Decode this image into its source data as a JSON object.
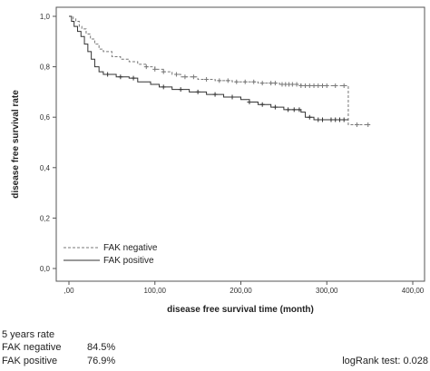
{
  "chart_data": {
    "type": "line",
    "title": "",
    "xlabel": "disease free survival time (month)",
    "ylabel": "disease free survival rate",
    "xlim": [
      0,
      400
    ],
    "ylim": [
      0,
      1.0
    ],
    "x_ticks": [
      0,
      100,
      200,
      300,
      400
    ],
    "x_tick_labels": [
      ",00",
      "100,00",
      "200,00",
      "300,00",
      "400,00"
    ],
    "y_ticks": [
      0,
      0.2,
      0.4,
      0.6,
      0.8,
      1.0
    ],
    "y_tick_labels": [
      "0,0",
      "0,2",
      "0,4",
      "0,6",
      "0,8",
      "1,0"
    ],
    "grid": false,
    "legend_position": "bottom-left",
    "series": [
      {
        "name": "FAK negative",
        "style": "dashed",
        "color": "#777777",
        "points": [
          [
            0,
            1.0
          ],
          [
            5,
            0.99
          ],
          [
            8,
            0.98
          ],
          [
            12,
            0.96
          ],
          [
            15,
            0.95
          ],
          [
            20,
            0.93
          ],
          [
            25,
            0.91
          ],
          [
            30,
            0.89
          ],
          [
            35,
            0.87
          ],
          [
            40,
            0.86
          ],
          [
            50,
            0.84
          ],
          [
            60,
            0.83
          ],
          [
            70,
            0.82
          ],
          [
            80,
            0.81
          ],
          [
            90,
            0.8
          ],
          [
            100,
            0.79
          ],
          [
            110,
            0.78
          ],
          [
            120,
            0.77
          ],
          [
            130,
            0.76
          ],
          [
            150,
            0.75
          ],
          [
            170,
            0.745
          ],
          [
            190,
            0.74
          ],
          [
            220,
            0.735
          ],
          [
            245,
            0.73
          ],
          [
            270,
            0.725
          ],
          [
            325,
            0.72
          ],
          [
            325,
            0.57
          ],
          [
            350,
            0.57
          ]
        ],
        "censor_x": [
          90,
          100,
          110,
          125,
          135,
          145,
          160,
          175,
          185,
          195,
          205,
          215,
          225,
          235,
          240,
          248,
          252,
          256,
          260,
          265,
          270,
          275,
          280,
          285,
          290,
          295,
          300,
          310,
          320,
          335,
          348
        ]
      },
      {
        "name": "FAK positive",
        "style": "solid",
        "color": "#333333",
        "points": [
          [
            0,
            1.0
          ],
          [
            3,
            0.98
          ],
          [
            6,
            0.96
          ],
          [
            10,
            0.94
          ],
          [
            14,
            0.92
          ],
          [
            18,
            0.89
          ],
          [
            22,
            0.86
          ],
          [
            26,
            0.83
          ],
          [
            30,
            0.8
          ],
          [
            35,
            0.78
          ],
          [
            40,
            0.77
          ],
          [
            55,
            0.76
          ],
          [
            70,
            0.755
          ],
          [
            80,
            0.74
          ],
          [
            95,
            0.73
          ],
          [
            105,
            0.72
          ],
          [
            120,
            0.71
          ],
          [
            140,
            0.7
          ],
          [
            160,
            0.69
          ],
          [
            180,
            0.68
          ],
          [
            200,
            0.67
          ],
          [
            210,
            0.66
          ],
          [
            220,
            0.65
          ],
          [
            235,
            0.64
          ],
          [
            250,
            0.63
          ],
          [
            270,
            0.62
          ],
          [
            275,
            0.6
          ],
          [
            285,
            0.59
          ],
          [
            300,
            0.59
          ],
          [
            325,
            0.59
          ]
        ],
        "censor_x": [
          45,
          60,
          75,
          110,
          130,
          150,
          170,
          190,
          210,
          225,
          240,
          255,
          262,
          268,
          280,
          290,
          295,
          305,
          310,
          315,
          320
        ]
      }
    ]
  },
  "stats": {
    "heading": "5 years rate",
    "rows": [
      {
        "label": "FAK negative",
        "value": "84.5%"
      },
      {
        "label": "FAK positive",
        "value": "76.9%"
      }
    ],
    "logrank": "logRank test: 0.028"
  }
}
